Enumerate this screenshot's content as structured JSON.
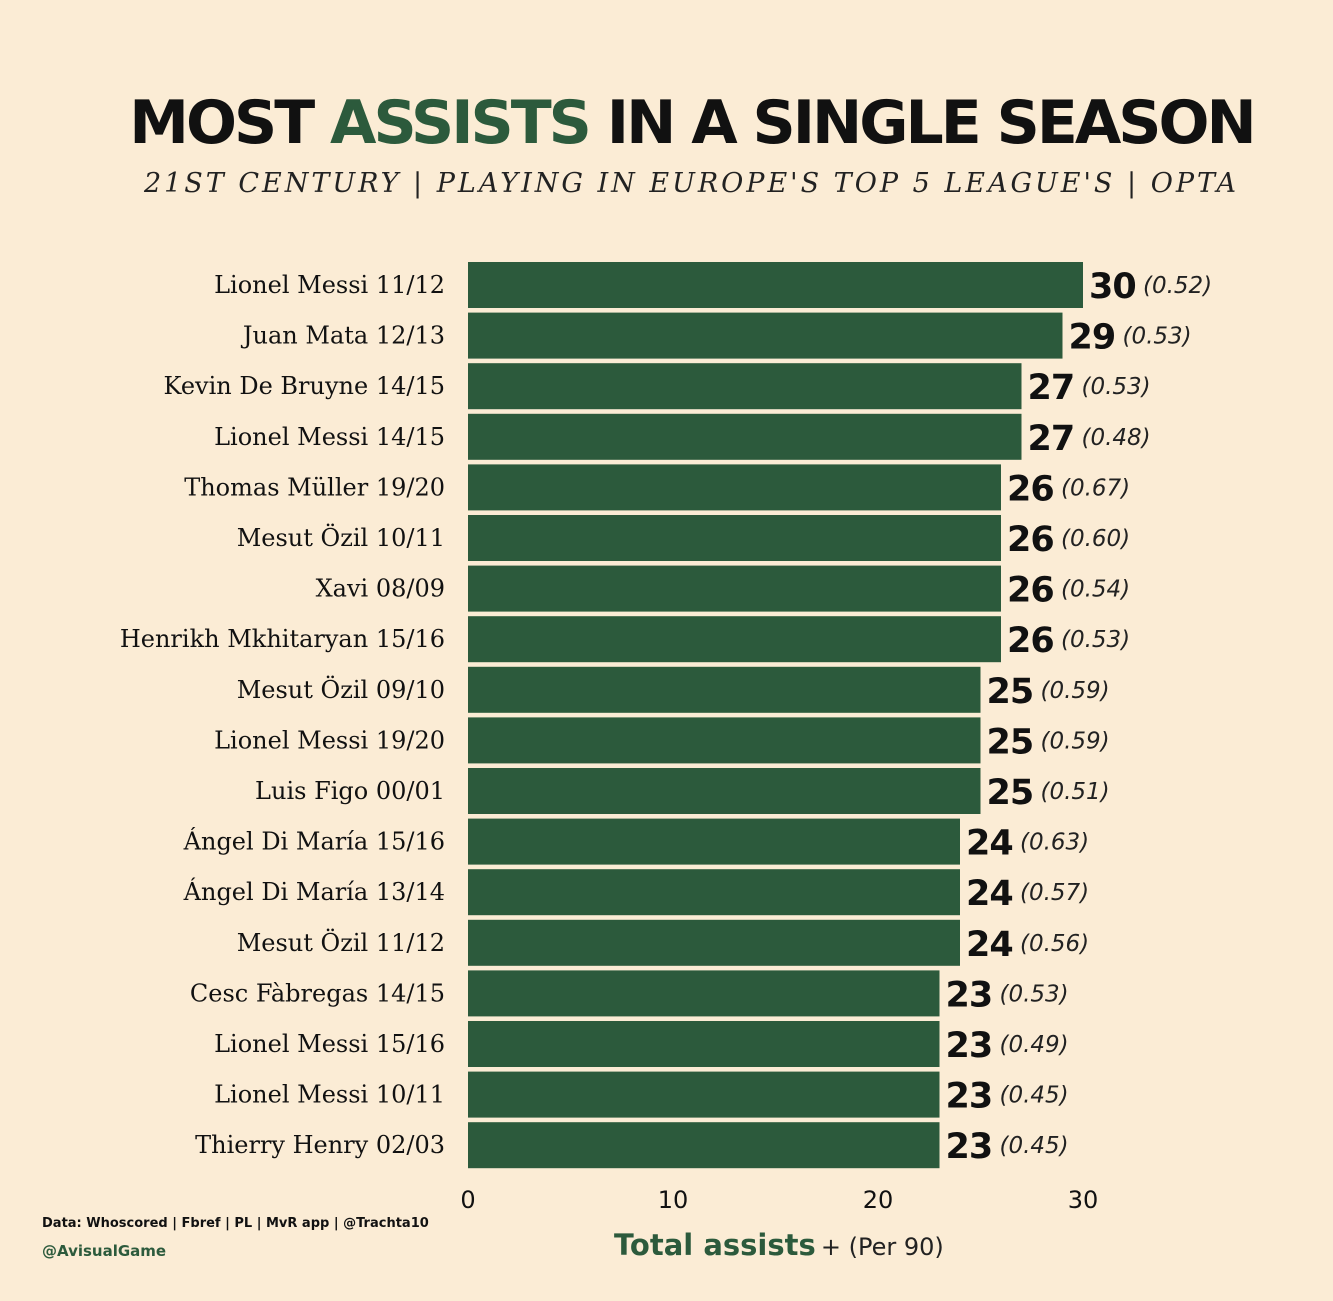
{
  "title": {
    "part1": "MOST",
    "accent": "ASSISTS",
    "part2": "IN A SINGLE SEASON"
  },
  "subtitle": "21ST CENTURY  |  PLAYING IN EUROPE'S TOP 5 LEAGUE'S  |  OPTA",
  "footer": {
    "source": "Data: Whoscored | Fbref | PL | MvR app | @Trachta10",
    "handle": "@AvisualGame"
  },
  "colors": {
    "background": "#fbecd5",
    "bar": "#2c5a3c",
    "accent": "#2c5a3c",
    "text": "#111111"
  },
  "chart_data": {
    "type": "bar",
    "orientation": "horizontal",
    "categories": [
      "Lionel Messi 11/12",
      "Juan Mata 12/13",
      "Kevin De Bruyne 14/15",
      "Lionel Messi 14/15",
      "Thomas Müller 19/20",
      "Mesut Özil 10/11",
      "Xavi 08/09",
      "Henrikh Mkhitaryan 15/16",
      "Mesut Özil 09/10",
      "Lionel Messi 19/20",
      "Luis Figo 00/01",
      "Ángel Di María 15/16",
      "Ángel Di María 13/14",
      "Mesut Özil 11/12",
      "Cesc Fàbregas 14/15",
      "Lionel Messi 15/16",
      "Lionel Messi 10/11",
      "Thierry Henry 02/03"
    ],
    "values": [
      30,
      29,
      27,
      27,
      26,
      26,
      26,
      26,
      25,
      25,
      25,
      24,
      24,
      24,
      23,
      23,
      23,
      23
    ],
    "per90_labels": [
      "(0.52)",
      "(0.53)",
      "(0.53)",
      "(0.48)",
      "(0.67)",
      "(0.60)",
      "(0.54)",
      "(0.53)",
      "(0.59)",
      "(0.59)",
      "(0.51)",
      "(0.63)",
      "(0.57)",
      "(0.56)",
      "(0.53)",
      "(0.49)",
      "(0.45)",
      "(0.45)"
    ],
    "xlabel": "Total assists",
    "xlabel_suffix": "+ (Per 90)",
    "xlim": [
      0,
      30
    ],
    "xticks": [
      0,
      10,
      20,
      30
    ],
    "grid": false,
    "legend": "none"
  }
}
